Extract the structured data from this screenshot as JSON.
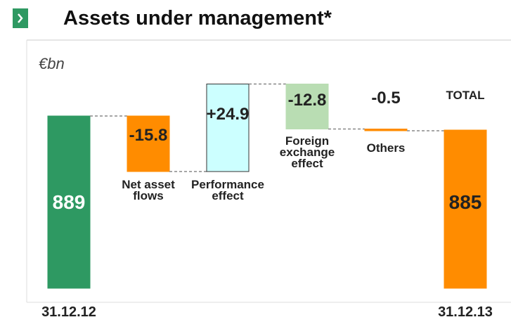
{
  "chart_data": {
    "type": "waterfall",
    "title": "Assets under management*",
    "unit_label": "€bn",
    "annotation": "TOTAL",
    "categories": [
      "31.12.12",
      "Net asset flows",
      "Performance effect",
      "Foreign exchange effect",
      "Others",
      "31.12.13"
    ],
    "measure": [
      "absolute",
      "relative",
      "relative",
      "relative",
      "relative",
      "total"
    ],
    "values": [
      889,
      -15.8,
      24.9,
      -12.8,
      -0.5,
      885
    ],
    "value_labels": [
      "889",
      "-15.8",
      "+24.9",
      "-12.8",
      "-0.5",
      "885"
    ],
    "colors": [
      "#2e9962",
      "#ff8c00",
      "#ccffff",
      "#b9ddb3",
      "#ff8c00",
      "#ff8c00"
    ],
    "ylim": [
      840,
      900
    ]
  }
}
